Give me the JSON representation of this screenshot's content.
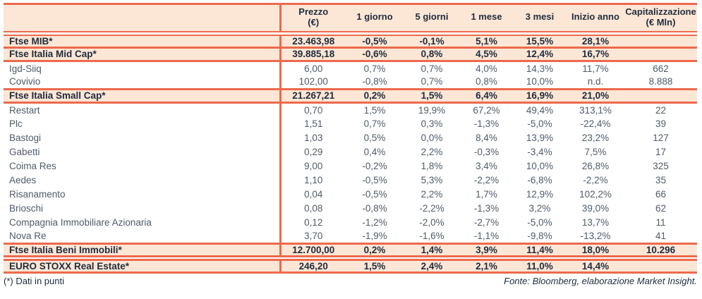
{
  "colors": {
    "accent_border": "#ec6a4d",
    "row_highlight": "#fce6d5",
    "text_bold": "#1f2c3d",
    "text_regular": "#4f5b69"
  },
  "table": {
    "columns": [
      {
        "id": "name",
        "label": "",
        "sub": ""
      },
      {
        "id": "prezzo",
        "label": "Prezzo",
        "sub": "(€)"
      },
      {
        "id": "1-giorno",
        "label": "1 giorno",
        "sub": ""
      },
      {
        "id": "5-giorni",
        "label": "5 giorni",
        "sub": ""
      },
      {
        "id": "1-mese",
        "label": "1 mese",
        "sub": ""
      },
      {
        "id": "3-mesi",
        "label": "3 mesi",
        "sub": ""
      },
      {
        "id": "inizio-anno",
        "label": "Inizio anno",
        "sub": ""
      },
      {
        "id": "capitalizzazione",
        "label": "Capitalizzazione",
        "sub": "(€ Mln)"
      }
    ],
    "rows": [
      {
        "name": "Ftse MIB*",
        "style": "index",
        "sep": "single",
        "cells": [
          "23.463,98",
          "-0,5%",
          "-0,1%",
          "5,1%",
          "15,5%",
          "28,1%",
          ""
        ]
      },
      {
        "name": "Ftse Italia Mid Cap*",
        "style": "index",
        "sep": "single",
        "cells": [
          "39.885,18",
          "-0,6%",
          "0,8%",
          "4,5%",
          "12,4%",
          "16,7%",
          ""
        ]
      },
      {
        "name": "Igd-Siiq",
        "style": "stock",
        "sep": "none",
        "cells": [
          "6,00",
          "0,7%",
          "0,7%",
          "4,0%",
          "14,3%",
          "11,7%",
          "662"
        ]
      },
      {
        "name": "Covivio",
        "style": "stock",
        "sep": "single",
        "cells": [
          "102,00",
          "-0,8%",
          "0,7%",
          "0,8%",
          "10,0%",
          "n.d.",
          "8.888"
        ]
      },
      {
        "name": "Ftse Italia Small Cap*",
        "style": "index",
        "sep": "single",
        "cells": [
          "21.267,21",
          "0,2%",
          "1,5%",
          "6,4%",
          "16,9%",
          "21,0%",
          ""
        ]
      },
      {
        "name": "Restart",
        "style": "stock",
        "sep": "none",
        "cells": [
          "0,70",
          "1,5%",
          "19,9%",
          "67,2%",
          "49,4%",
          "313,1%",
          "22"
        ]
      },
      {
        "name": "Plc",
        "style": "stock",
        "sep": "none",
        "cells": [
          "1,51",
          "0,7%",
          "0,3%",
          "-1,3%",
          "-5,0%",
          "-22,4%",
          "39"
        ]
      },
      {
        "name": "Bastogi",
        "style": "stock",
        "sep": "none",
        "cells": [
          "1,03",
          "0,5%",
          "0,0%",
          "8,4%",
          "13,9%",
          "23,2%",
          "127"
        ]
      },
      {
        "name": "Gabetti",
        "style": "stock",
        "sep": "none",
        "cells": [
          "0,29",
          "0,4%",
          "2,2%",
          "-0,3%",
          "-3,4%",
          "7,5%",
          "17"
        ]
      },
      {
        "name": "Coima Res",
        "style": "stock",
        "sep": "none",
        "cells": [
          "9,00",
          "-0,2%",
          "1,8%",
          "3,4%",
          "10,0%",
          "26,8%",
          "325"
        ]
      },
      {
        "name": "Aedes",
        "style": "stock",
        "sep": "none",
        "cells": [
          "1,10",
          "-0,5%",
          "5,3%",
          "-2,2%",
          "-6,8%",
          "-2,2%",
          "35"
        ]
      },
      {
        "name": "Risanamento",
        "style": "stock",
        "sep": "none",
        "cells": [
          "0,04",
          "-0,5%",
          "2,2%",
          "1,7%",
          "12,9%",
          "102,2%",
          "66"
        ]
      },
      {
        "name": "Brioschi",
        "style": "stock",
        "sep": "none",
        "cells": [
          "0,08",
          "-0,8%",
          "-2,2%",
          "-1,3%",
          "3,2%",
          "39,0%",
          "62"
        ]
      },
      {
        "name": "Compagnia Immobiliare Azionaria",
        "style": "stock",
        "sep": "none",
        "cells": [
          "0,12",
          "-1,2%",
          "-2,0%",
          "-2,7%",
          "-5,0%",
          "13,7%",
          "11"
        ]
      },
      {
        "name": "Nova Re",
        "style": "stock",
        "sep": "single",
        "cells": [
          "3,70",
          "-1,9%",
          "-1,6%",
          "-1,1%",
          "-9,8%",
          "-13,2%",
          "41"
        ]
      },
      {
        "name": "Ftse Italia Beni Immobili*",
        "style": "index",
        "sep": "double",
        "cells": [
          "12.700,00",
          "0,2%",
          "1,4%",
          "3,9%",
          "11,4%",
          "18,0%",
          "10.296"
        ]
      },
      {
        "name": "EURO STOXX Real Estate*",
        "style": "index",
        "sep": "single",
        "cells": [
          "246,20",
          "1,5%",
          "2,4%",
          "2,1%",
          "11,0%",
          "14,4%",
          ""
        ]
      }
    ]
  },
  "footer": {
    "note": "(*) Dati in punti",
    "source": "Fonte: Bloomberg, elaborazione Market Insight."
  }
}
